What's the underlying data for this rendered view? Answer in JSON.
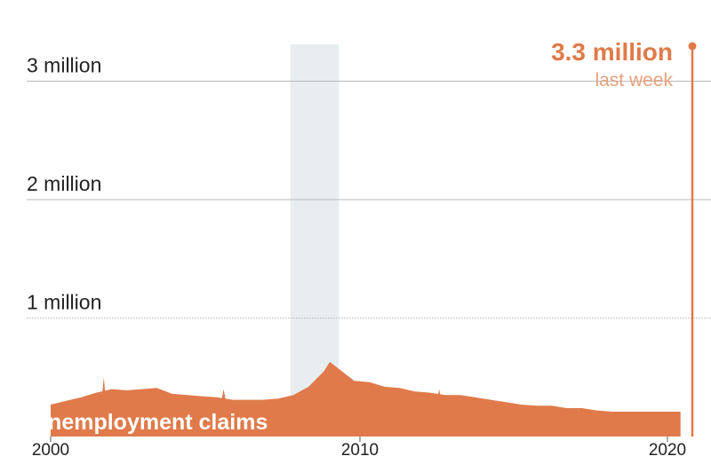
{
  "colors": {
    "area": "#e07a4a",
    "recession": "#e8eef0",
    "grid": "#b9b9b9",
    "text": "#222222",
    "callout_sub": "#e8a07c"
  },
  "chart_data": {
    "type": "area",
    "series": [
      {
        "name": "Unemployment claims",
        "points": [
          [
            2000.0,
            0.27
          ],
          [
            2000.5,
            0.3
          ],
          [
            2001.0,
            0.33
          ],
          [
            2001.5,
            0.37
          ],
          [
            2002.0,
            0.4
          ],
          [
            2002.5,
            0.39
          ],
          [
            2003.0,
            0.4
          ],
          [
            2003.5,
            0.41
          ],
          [
            2004.0,
            0.36
          ],
          [
            2004.5,
            0.35
          ],
          [
            2005.0,
            0.34
          ],
          [
            2005.5,
            0.33
          ],
          [
            2006.0,
            0.31
          ],
          [
            2006.5,
            0.31
          ],
          [
            2007.0,
            0.31
          ],
          [
            2007.5,
            0.32
          ],
          [
            2008.0,
            0.35
          ],
          [
            2008.5,
            0.42
          ],
          [
            2009.0,
            0.55
          ],
          [
            2009.2,
            0.63
          ],
          [
            2009.5,
            0.57
          ],
          [
            2010.0,
            0.47
          ],
          [
            2010.5,
            0.46
          ],
          [
            2011.0,
            0.42
          ],
          [
            2011.5,
            0.41
          ],
          [
            2012.0,
            0.38
          ],
          [
            2012.5,
            0.37
          ],
          [
            2013.0,
            0.35
          ],
          [
            2013.5,
            0.35
          ],
          [
            2014.0,
            0.33
          ],
          [
            2014.5,
            0.31
          ],
          [
            2015.0,
            0.29
          ],
          [
            2015.5,
            0.27
          ],
          [
            2016.0,
            0.26
          ],
          [
            2016.5,
            0.26
          ],
          [
            2017.0,
            0.24
          ],
          [
            2017.5,
            0.24
          ],
          [
            2018.0,
            0.22
          ],
          [
            2018.5,
            0.21
          ],
          [
            2019.0,
            0.21
          ],
          [
            2019.5,
            0.21
          ],
          [
            2020.0,
            0.21
          ],
          [
            2020.17,
            0.21
          ]
        ],
        "spikes": [
          [
            2001.75,
            0.5
          ],
          [
            2005.7,
            0.4
          ],
          [
            2012.8,
            0.4
          ]
        ]
      }
    ],
    "latest": {
      "x": 2020.2,
      "y": 3.3,
      "value_label": "3.3 million",
      "sub_label": "last week"
    },
    "recession_band": [
      2007.9,
      2009.5
    ],
    "x_ticks": [
      {
        "value": 2000,
        "label": "2000"
      },
      {
        "value": 2010,
        "label": "2010"
      },
      {
        "value": 2020,
        "label": "2020"
      }
    ],
    "y_ticks": [
      {
        "value": 1,
        "label": "1 million"
      },
      {
        "value": 2,
        "label": "2 million"
      },
      {
        "value": 3,
        "label": "3 million"
      }
    ],
    "xlim": [
      2000,
      2020.5
    ],
    "ylim": [
      0,
      3.3
    ],
    "series_label": "Unemployment claims",
    "grid": true
  }
}
